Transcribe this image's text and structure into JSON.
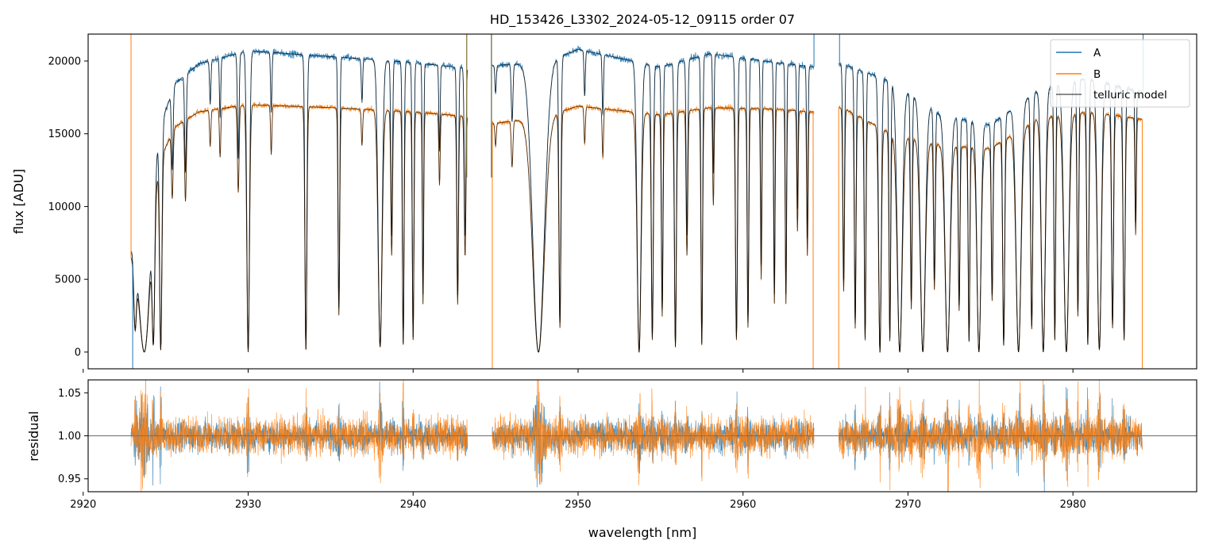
{
  "chart_data": [
    {
      "id": "flux",
      "type": "line",
      "title": "HD_153426_L3302_2024-05-12_09115  order 07",
      "xlabel": "",
      "ylabel": "flux [ADU]",
      "xlim": [
        2920.3,
        2987.5
      ],
      "ylim": [
        -1150,
        21850
      ],
      "xticks": [
        2920,
        2930,
        2940,
        2950,
        2960,
        2970,
        2980
      ],
      "xtick_labels": [
        "",
        "",
        "",
        "",
        "",
        "",
        ""
      ],
      "yticks": [
        0,
        5000,
        10000,
        15000,
        20000
      ],
      "ytick_labels": [
        "0",
        "5000",
        "10000",
        "15000",
        "20000"
      ],
      "data_segments": [
        [
          2922.9,
          2943.3
        ],
        [
          2944.8,
          2964.3
        ],
        [
          2965.8,
          2984.2
        ]
      ],
      "continuum": {
        "A": [
          [
            2922.9,
            7500
          ],
          [
            2924.0,
            13500
          ],
          [
            2925.6,
            18500
          ],
          [
            2927.0,
            19800
          ],
          [
            2930.0,
            20700
          ],
          [
            2935.0,
            20300
          ],
          [
            2940.0,
            19900
          ],
          [
            2943.2,
            19500
          ],
          [
            2944.9,
            19700
          ],
          [
            2948.0,
            19900
          ],
          [
            2950.0,
            20800
          ],
          [
            2955.0,
            19600
          ],
          [
            2958.0,
            20500
          ],
          [
            2962.0,
            19900
          ],
          [
            2964.2,
            19600
          ],
          [
            2966.0,
            19800
          ],
          [
            2969.0,
            18600
          ],
          [
            2972.0,
            16300
          ],
          [
            2975.0,
            15600
          ],
          [
            2978.0,
            18100
          ],
          [
            2981.0,
            18800
          ],
          [
            2984.2,
            17800
          ]
        ],
        "B": [
          [
            2922.9,
            7000
          ],
          [
            2924.0,
            11800
          ],
          [
            2925.6,
            15500
          ],
          [
            2927.0,
            16500
          ],
          [
            2930.0,
            17000
          ],
          [
            2935.0,
            16800
          ],
          [
            2940.0,
            16500
          ],
          [
            2943.2,
            16200
          ],
          [
            2944.9,
            15700
          ],
          [
            2948.0,
            16200
          ],
          [
            2950.0,
            16900
          ],
          [
            2955.0,
            16300
          ],
          [
            2958.0,
            16800
          ],
          [
            2962.0,
            16700
          ],
          [
            2964.2,
            16500
          ],
          [
            2966.0,
            16800
          ],
          [
            2969.0,
            15000
          ],
          [
            2972.0,
            14200
          ],
          [
            2975.0,
            14000
          ],
          [
            2978.0,
            16100
          ],
          [
            2981.0,
            16500
          ],
          [
            2984.2,
            16000
          ]
        ]
      },
      "absorption_lines": [
        [
          2923.15,
          0.75,
          0.08
        ],
        [
          2923.7,
          1.0,
          0.35
        ],
        [
          2924.25,
          0.95,
          0.08
        ],
        [
          2924.7,
          0.99,
          0.07
        ],
        [
          2925.4,
          0.3,
          0.05
        ],
        [
          2926.2,
          0.35,
          0.05
        ],
        [
          2927.7,
          0.15,
          0.04
        ],
        [
          2928.3,
          0.2,
          0.04
        ],
        [
          2929.4,
          0.35,
          0.05
        ],
        [
          2930.0,
          1.0,
          0.08
        ],
        [
          2931.4,
          0.2,
          0.04
        ],
        [
          2933.5,
          0.99,
          0.06
        ],
        [
          2935.5,
          0.85,
          0.05
        ],
        [
          2936.9,
          0.15,
          0.04
        ],
        [
          2938.0,
          0.98,
          0.12
        ],
        [
          2938.7,
          0.6,
          0.05
        ],
        [
          2939.4,
          0.97,
          0.05
        ],
        [
          2940.0,
          0.95,
          0.05
        ],
        [
          2940.6,
          0.8,
          0.04
        ],
        [
          2941.6,
          0.3,
          0.04
        ],
        [
          2942.7,
          0.8,
          0.05
        ],
        [
          2943.15,
          0.6,
          0.05
        ],
        [
          2945.0,
          0.1,
          0.04
        ],
        [
          2946.0,
          0.2,
          0.05
        ],
        [
          2947.6,
          1.0,
          0.35
        ],
        [
          2948.9,
          0.9,
          0.06
        ],
        [
          2950.4,
          0.15,
          0.04
        ],
        [
          2951.5,
          0.2,
          0.04
        ],
        [
          2953.7,
          1.0,
          0.12
        ],
        [
          2954.5,
          0.95,
          0.06
        ],
        [
          2955.1,
          0.85,
          0.05
        ],
        [
          2955.9,
          0.98,
          0.06
        ],
        [
          2956.6,
          0.6,
          0.05
        ],
        [
          2957.5,
          0.97,
          0.05
        ],
        [
          2958.2,
          0.4,
          0.04
        ],
        [
          2959.6,
          0.95,
          0.06
        ],
        [
          2960.3,
          0.9,
          0.05
        ],
        [
          2961.1,
          0.7,
          0.04
        ],
        [
          2961.9,
          0.8,
          0.04
        ],
        [
          2962.6,
          0.8,
          0.04
        ],
        [
          2963.3,
          0.5,
          0.04
        ],
        [
          2963.9,
          0.6,
          0.04
        ],
        [
          2966.1,
          0.75,
          0.05
        ],
        [
          2966.8,
          0.9,
          0.05
        ],
        [
          2967.4,
          0.95,
          0.05
        ],
        [
          2968.3,
          1.0,
          0.08
        ],
        [
          2968.9,
          0.95,
          0.05
        ],
        [
          2969.5,
          1.0,
          0.15
        ],
        [
          2970.2,
          0.8,
          0.05
        ],
        [
          2970.9,
          1.0,
          0.15
        ],
        [
          2971.6,
          0.7,
          0.05
        ],
        [
          2972.4,
          1.0,
          0.15
        ],
        [
          2973.1,
          0.8,
          0.05
        ],
        [
          2973.7,
          0.95,
          0.05
        ],
        [
          2974.3,
          1.0,
          0.12
        ],
        [
          2975.1,
          0.75,
          0.05
        ],
        [
          2975.8,
          0.97,
          0.06
        ],
        [
          2976.7,
          1.0,
          0.15
        ],
        [
          2977.5,
          0.9,
          0.06
        ],
        [
          2978.2,
          1.0,
          0.12
        ],
        [
          2978.9,
          0.95,
          0.05
        ],
        [
          2979.6,
          1.0,
          0.15
        ],
        [
          2980.3,
          0.85,
          0.05
        ],
        [
          2980.9,
          0.97,
          0.06
        ],
        [
          2981.6,
          0.99,
          0.12
        ],
        [
          2982.4,
          0.9,
          0.06
        ],
        [
          2983.1,
          0.95,
          0.06
        ],
        [
          2983.8,
          0.5,
          0.04
        ]
      ],
      "spikes": [
        {
          "series": "B",
          "x": 2922.9,
          "y": 21850
        },
        {
          "series": "A",
          "x": 2923.0,
          "y": -1150
        },
        {
          "series": "B",
          "x": 2944.8,
          "y": -1150
        },
        {
          "series": "B",
          "x": 2964.25,
          "y": -1150
        },
        {
          "series": "A",
          "x": 2964.3,
          "y": 21850
        },
        {
          "series": "B",
          "x": 2965.8,
          "y": -1150
        },
        {
          "series": "A",
          "x": 2965.85,
          "y": 21850
        },
        {
          "series": "B",
          "x": 2984.2,
          "y": -1150
        },
        {
          "series": "A",
          "x": 2984.25,
          "y": 21850
        }
      ],
      "gap_markers": [
        {
          "x": 2943.25,
          "y": 21850,
          "color": "#8c7a42"
        },
        {
          "x": 2944.75,
          "y": 21850,
          "color": "#6b6b52"
        }
      ],
      "series": [
        {
          "name": "A",
          "color": "#1f77b4"
        },
        {
          "name": "B",
          "color": "#ff7f0e"
        },
        {
          "name": "telluric model",
          "color": "#000000"
        }
      ],
      "legend": {
        "position": "upper right",
        "entries": [
          "A",
          "B",
          "telluric model"
        ]
      }
    },
    {
      "id": "residual",
      "type": "line",
      "title": "",
      "xlabel": "wavelength [nm]",
      "ylabel": "residual",
      "xlim": [
        2920.3,
        2987.5
      ],
      "ylim": [
        0.935,
        1.065
      ],
      "xticks": [
        2920,
        2930,
        2940,
        2950,
        2960,
        2970,
        2980
      ],
      "xtick_labels": [
        "2920",
        "2930",
        "2940",
        "2950",
        "2960",
        "2970",
        "2980"
      ],
      "yticks": [
        0.95,
        1.0,
        1.05
      ],
      "ytick_labels": [
        "0.95",
        "1.00",
        "1.05"
      ],
      "reference_line": 1.0,
      "data_segments": [
        [
          2922.9,
          2943.3
        ],
        [
          2944.8,
          2964.3
        ],
        [
          2965.8,
          2984.2
        ]
      ],
      "noise_sigma": {
        "A": 0.018,
        "B": 0.022
      },
      "series": [
        {
          "name": "A",
          "color": "#1f77b4"
        },
        {
          "name": "B",
          "color": "#ff7f0e"
        }
      ]
    }
  ]
}
